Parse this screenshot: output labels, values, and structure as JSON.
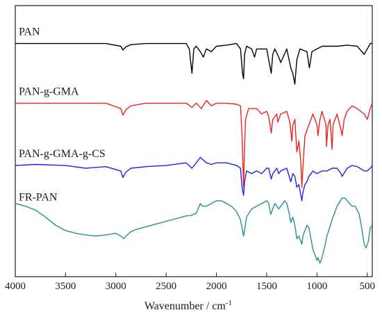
{
  "chart_data": {
    "type": "line",
    "xlabel": "Wavenumber / cm",
    "xlabel_superscript": "-1",
    "xlim": [
      4000,
      450
    ],
    "x_reversed": true,
    "xticks": [
      4000,
      3500,
      3000,
      2500,
      2000,
      1500,
      1000,
      500
    ],
    "y_tick_labels": false,
    "grid": false,
    "legend": "labels placed above each trace (stacked plot)",
    "series": [
      {
        "name": "PAN",
        "color": "#000000",
        "baseline": 4.3,
        "points": [
          [
            4000,
            0
          ],
          [
            3500,
            0
          ],
          [
            3100,
            0
          ],
          [
            2950,
            -0.05
          ],
          [
            2930,
            -0.12
          ],
          [
            2900,
            -0.06
          ],
          [
            2850,
            -0.02
          ],
          [
            2700,
            0
          ],
          [
            2400,
            0
          ],
          [
            2300,
            0
          ],
          [
            2270,
            -0.1
          ],
          [
            2243,
            -0.55
          ],
          [
            2225,
            -0.1
          ],
          [
            2200,
            -0.05
          ],
          [
            2160,
            -0.15
          ],
          [
            2130,
            -0.25
          ],
          [
            2100,
            -0.1
          ],
          [
            2050,
            -0.15
          ],
          [
            2000,
            -0.05
          ],
          [
            1900,
            -0.03
          ],
          [
            1800,
            0
          ],
          [
            1760,
            -0.1
          ],
          [
            1740,
            -0.55
          ],
          [
            1730,
            -0.65
          ],
          [
            1720,
            -0.2
          ],
          [
            1700,
            -0.05
          ],
          [
            1650,
            -0.1
          ],
          [
            1620,
            -0.25
          ],
          [
            1600,
            -0.1
          ],
          [
            1500,
            -0.1
          ],
          [
            1455,
            -0.55
          ],
          [
            1440,
            -0.2
          ],
          [
            1420,
            -0.1
          ],
          [
            1380,
            -0.25
          ],
          [
            1360,
            -0.35
          ],
          [
            1300,
            -0.1
          ],
          [
            1260,
            -0.45
          ],
          [
            1240,
            -0.55
          ],
          [
            1220,
            -0.75
          ],
          [
            1200,
            -0.3
          ],
          [
            1170,
            -0.1
          ],
          [
            1100,
            -0.15
          ],
          [
            1075,
            -0.45
          ],
          [
            1050,
            -0.15
          ],
          [
            1000,
            -0.1
          ],
          [
            950,
            -0.05
          ],
          [
            900,
            -0.05
          ],
          [
            800,
            -0.05
          ],
          [
            700,
            -0.03
          ],
          [
            600,
            -0.05
          ],
          [
            530,
            -0.2
          ],
          [
            500,
            -0.1
          ],
          [
            470,
            0
          ],
          [
            450,
            0
          ]
        ]
      },
      {
        "name": "PAN-g-GMA",
        "color": "#ee2222",
        "baseline": 3.2,
        "points": [
          [
            4000,
            0
          ],
          [
            3500,
            0
          ],
          [
            3100,
            0
          ],
          [
            2950,
            -0.1
          ],
          [
            2930,
            -0.22
          ],
          [
            2900,
            -0.12
          ],
          [
            2850,
            -0.05
          ],
          [
            2700,
            0
          ],
          [
            2300,
            0
          ],
          [
            2243,
            -0.08
          ],
          [
            2200,
            0
          ],
          [
            2150,
            -0.1
          ],
          [
            2100,
            0.05
          ],
          [
            2050,
            -0.05
          ],
          [
            2000,
            0
          ],
          [
            1900,
            0
          ],
          [
            1800,
            -0.02
          ],
          [
            1760,
            -0.05
          ],
          [
            1745,
            -0.6
          ],
          [
            1735,
            -1.2
          ],
          [
            1730,
            -1.55
          ],
          [
            1720,
            -0.8
          ],
          [
            1710,
            -0.3
          ],
          [
            1680,
            -0.1
          ],
          [
            1600,
            -0.1
          ],
          [
            1550,
            -0.2
          ],
          [
            1500,
            -0.15
          ],
          [
            1480,
            -0.25
          ],
          [
            1455,
            -0.55
          ],
          [
            1440,
            -0.3
          ],
          [
            1400,
            -0.2
          ],
          [
            1390,
            -0.35
          ],
          [
            1360,
            -0.2
          ],
          [
            1300,
            -0.15
          ],
          [
            1270,
            -0.35
          ],
          [
            1250,
            -0.7
          ],
          [
            1240,
            -0.4
          ],
          [
            1220,
            -0.3
          ],
          [
            1200,
            -0.9
          ],
          [
            1180,
            -0.7
          ],
          [
            1160,
            -1.1
          ],
          [
            1150,
            -1.55
          ],
          [
            1140,
            -1.2
          ],
          [
            1120,
            -0.6
          ],
          [
            1100,
            -0.5
          ],
          [
            1080,
            -0.4
          ],
          [
            1060,
            -0.3
          ],
          [
            1040,
            -0.2
          ],
          [
            1000,
            -0.4
          ],
          [
            990,
            -0.6
          ],
          [
            970,
            -0.3
          ],
          [
            950,
            -0.15
          ],
          [
            910,
            -0.4
          ],
          [
            905,
            -0.8
          ],
          [
            890,
            -0.4
          ],
          [
            870,
            -0.3
          ],
          [
            850,
            -0.85
          ],
          [
            840,
            -0.4
          ],
          [
            800,
            -0.2
          ],
          [
            760,
            -0.5
          ],
          [
            750,
            -0.6
          ],
          [
            730,
            -0.3
          ],
          [
            700,
            -0.15
          ],
          [
            650,
            -0.05
          ],
          [
            600,
            -0.1
          ],
          [
            530,
            -0.2
          ],
          [
            500,
            -0.3
          ],
          [
            470,
            -0.1
          ],
          [
            450,
            0
          ]
        ]
      },
      {
        "name": "PAN-g-GMA-g-CS",
        "color": "#2020ee",
        "baseline": 2.05,
        "points": [
          [
            4000,
            0
          ],
          [
            3800,
            0.02
          ],
          [
            3500,
            0
          ],
          [
            3300,
            -0.05
          ],
          [
            3100,
            -0.02
          ],
          [
            2950,
            -0.1
          ],
          [
            2930,
            -0.22
          ],
          [
            2900,
            -0.12
          ],
          [
            2850,
            -0.05
          ],
          [
            2700,
            -0.02
          ],
          [
            2500,
            0
          ],
          [
            2300,
            0.05
          ],
          [
            2243,
            -0.05
          ],
          [
            2200,
            0.05
          ],
          [
            2160,
            0.15
          ],
          [
            2130,
            0.1
          ],
          [
            2100,
            0.05
          ],
          [
            2050,
            0.02
          ],
          [
            2000,
            0.05
          ],
          [
            1900,
            0.05
          ],
          [
            1800,
            0
          ],
          [
            1760,
            -0.05
          ],
          [
            1745,
            -0.4
          ],
          [
            1730,
            -0.55
          ],
          [
            1720,
            -0.3
          ],
          [
            1700,
            -0.1
          ],
          [
            1650,
            -0.15
          ],
          [
            1600,
            -0.1
          ],
          [
            1550,
            -0.15
          ],
          [
            1500,
            -0.05
          ],
          [
            1480,
            -0.05
          ],
          [
            1455,
            -0.25
          ],
          [
            1440,
            -0.15
          ],
          [
            1400,
            -0.05
          ],
          [
            1380,
            -0.15
          ],
          [
            1360,
            -0.1
          ],
          [
            1300,
            -0.05
          ],
          [
            1260,
            -0.3
          ],
          [
            1240,
            -0.15
          ],
          [
            1220,
            -0.2
          ],
          [
            1200,
            -0.4
          ],
          [
            1180,
            -0.35
          ],
          [
            1160,
            -0.55
          ],
          [
            1150,
            -0.65
          ],
          [
            1140,
            -0.5
          ],
          [
            1120,
            -0.35
          ],
          [
            1100,
            -0.3
          ],
          [
            1080,
            -0.2
          ],
          [
            1060,
            -0.15
          ],
          [
            1040,
            -0.1
          ],
          [
            1000,
            -0.15
          ],
          [
            950,
            -0.1
          ],
          [
            900,
            -0.1
          ],
          [
            850,
            -0.05
          ],
          [
            800,
            -0.05
          ],
          [
            760,
            -0.15
          ],
          [
            750,
            -0.2
          ],
          [
            700,
            -0.05
          ],
          [
            650,
            0
          ],
          [
            600,
            -0.02
          ],
          [
            530,
            -0.1
          ],
          [
            500,
            -0.1
          ],
          [
            470,
            -0.05
          ],
          [
            450,
            0
          ]
        ]
      },
      {
        "name": "FR-PAN",
        "color": "#26918c",
        "baseline": 1.25,
        "points": [
          [
            4000,
            0.1
          ],
          [
            3900,
            0.05
          ],
          [
            3800,
            -0.02
          ],
          [
            3700,
            -0.15
          ],
          [
            3600,
            -0.3
          ],
          [
            3500,
            -0.4
          ],
          [
            3400,
            -0.45
          ],
          [
            3300,
            -0.48
          ],
          [
            3200,
            -0.5
          ],
          [
            3100,
            -0.48
          ],
          [
            3000,
            -0.45
          ],
          [
            2950,
            -0.5
          ],
          [
            2920,
            -0.55
          ],
          [
            2900,
            -0.5
          ],
          [
            2850,
            -0.42
          ],
          [
            2800,
            -0.38
          ],
          [
            2700,
            -0.33
          ],
          [
            2600,
            -0.28
          ],
          [
            2500,
            -0.23
          ],
          [
            2400,
            -0.18
          ],
          [
            2300,
            -0.13
          ],
          [
            2250,
            -0.12
          ],
          [
            2200,
            -0.08
          ],
          [
            2160,
            0.1
          ],
          [
            2140,
            0.05
          ],
          [
            2100,
            0.05
          ],
          [
            2050,
            0.1
          ],
          [
            2000,
            0.15
          ],
          [
            1950,
            0.15
          ],
          [
            1900,
            0.1
          ],
          [
            1850,
            0.05
          ],
          [
            1800,
            -0.05
          ],
          [
            1760,
            -0.2
          ],
          [
            1740,
            -0.4
          ],
          [
            1730,
            -0.5
          ],
          [
            1720,
            -0.4
          ],
          [
            1700,
            -0.15
          ],
          [
            1650,
            0
          ],
          [
            1600,
            0.05
          ],
          [
            1550,
            0.1
          ],
          [
            1500,
            0.15
          ],
          [
            1480,
            0.1
          ],
          [
            1460,
            -0.1
          ],
          [
            1440,
            0
          ],
          [
            1420,
            0.1
          ],
          [
            1400,
            0.05
          ],
          [
            1380,
            0
          ],
          [
            1360,
            0.05
          ],
          [
            1320,
            0.15
          ],
          [
            1300,
            0.1
          ],
          [
            1280,
            -0.05
          ],
          [
            1260,
            -0.25
          ],
          [
            1240,
            -0.15
          ],
          [
            1220,
            -0.3
          ],
          [
            1200,
            -0.55
          ],
          [
            1180,
            -0.5
          ],
          [
            1160,
            -0.6
          ],
          [
            1150,
            -0.65
          ],
          [
            1140,
            -0.5
          ],
          [
            1120,
            -0.4
          ],
          [
            1100,
            -0.3
          ],
          [
            1080,
            -0.35
          ],
          [
            1060,
            -0.55
          ],
          [
            1040,
            -0.75
          ],
          [
            1020,
            -0.85
          ],
          [
            1000,
            -0.95
          ],
          [
            990,
            -0.9
          ],
          [
            970,
            -1.0
          ],
          [
            950,
            -0.9
          ],
          [
            930,
            -0.75
          ],
          [
            900,
            -0.5
          ],
          [
            850,
            -0.2
          ],
          [
            800,
            0.05
          ],
          [
            750,
            0.2
          ],
          [
            720,
            0.2
          ],
          [
            700,
            0.15
          ],
          [
            650,
            0.05
          ],
          [
            620,
            0.05
          ],
          [
            580,
            -0.1
          ],
          [
            560,
            -0.3
          ],
          [
            530,
            -0.65
          ],
          [
            510,
            -0.72
          ],
          [
            490,
            -0.6
          ],
          [
            470,
            -0.35
          ],
          [
            450,
            -0.3
          ]
        ]
      }
    ]
  }
}
